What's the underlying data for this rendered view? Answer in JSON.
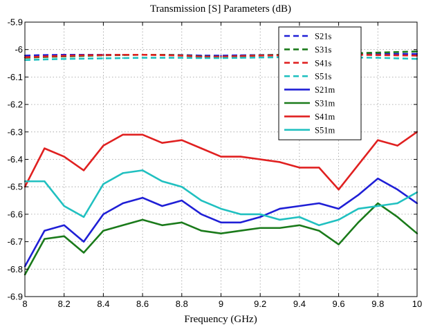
{
  "chart_data": {
    "type": "line",
    "title": "Transmission [S] Parameters (dB)",
    "xlabel": "Frequency (GHz)",
    "ylabel": "",
    "xlim": [
      8,
      10
    ],
    "ylim": [
      -6.9,
      -5.9
    ],
    "xticks": [
      "8",
      "8.2",
      "8.4",
      "8.6",
      "8.8",
      "9",
      "9.2",
      "9.4",
      "9.6",
      "9.8",
      "10"
    ],
    "yticks": [
      "-5.9",
      "-6",
      "-6.1",
      "-6.2",
      "-6.3",
      "-6.4",
      "-6.5",
      "-6.6",
      "-6.7",
      "-6.8",
      "-6.9"
    ],
    "grid": true,
    "legend_position": "top-right",
    "x": [
      8.0,
      8.1,
      8.2,
      8.3,
      8.4,
      8.5,
      8.6,
      8.7,
      8.8,
      8.9,
      9.0,
      9.1,
      9.2,
      9.3,
      9.4,
      9.5,
      9.6,
      9.7,
      9.8,
      9.9,
      10.0
    ],
    "series": [
      {
        "name": "S21s",
        "style": "dashed",
        "color": "#1f1fd6",
        "values": [
          -6.022,
          -6.02,
          -6.019,
          -6.019,
          -6.019,
          -6.019,
          -6.019,
          -6.019,
          -6.02,
          -6.022,
          -6.022,
          -6.021,
          -6.02,
          -6.019,
          -6.018,
          -6.018,
          -6.017,
          -6.017,
          -6.016,
          -6.016,
          -6.016
        ]
      },
      {
        "name": "S31s",
        "style": "dashed",
        "color": "#1a7a1a",
        "values": [
          -6.03,
          -6.027,
          -6.025,
          -6.023,
          -6.021,
          -6.02,
          -6.019,
          -6.019,
          -6.021,
          -6.025,
          -6.026,
          -6.024,
          -6.021,
          -6.019,
          -6.017,
          -6.016,
          -6.015,
          -6.013,
          -6.011,
          -6.009,
          -6.007
        ]
      },
      {
        "name": "S41s",
        "style": "dashed",
        "color": "#e02020",
        "values": [
          -6.028,
          -6.025,
          -6.023,
          -6.021,
          -6.02,
          -6.019,
          -6.019,
          -6.02,
          -6.022,
          -6.026,
          -6.026,
          -6.024,
          -6.022,
          -6.021,
          -6.02,
          -6.019,
          -6.019,
          -6.019,
          -6.02,
          -6.021,
          -6.022
        ]
      },
      {
        "name": "S51s",
        "style": "dashed",
        "color": "#20c0c0",
        "values": [
          -6.038,
          -6.036,
          -6.034,
          -6.033,
          -6.032,
          -6.031,
          -6.03,
          -6.03,
          -6.03,
          -6.031,
          -6.031,
          -6.03,
          -6.029,
          -6.028,
          -6.028,
          -6.028,
          -6.028,
          -6.029,
          -6.03,
          -6.032,
          -6.034
        ]
      },
      {
        "name": "S21m",
        "style": "solid",
        "color": "#1f1fd6",
        "values": [
          -6.79,
          -6.66,
          -6.64,
          -6.7,
          -6.6,
          -6.56,
          -6.54,
          -6.57,
          -6.55,
          -6.6,
          -6.63,
          -6.63,
          -6.61,
          -6.58,
          -6.57,
          -6.56,
          -6.58,
          -6.53,
          -6.47,
          -6.51,
          -6.56
        ]
      },
      {
        "name": "S31m",
        "style": "solid",
        "color": "#1a7a1a",
        "values": [
          -6.82,
          -6.69,
          -6.68,
          -6.74,
          -6.66,
          -6.64,
          -6.62,
          -6.64,
          -6.63,
          -6.66,
          -6.67,
          -6.66,
          -6.65,
          -6.65,
          -6.64,
          -6.66,
          -6.71,
          -6.63,
          -6.56,
          -6.61,
          -6.67
        ]
      },
      {
        "name": "S41m",
        "style": "solid",
        "color": "#e02020",
        "values": [
          -6.5,
          -6.36,
          -6.39,
          -6.44,
          -6.35,
          -6.31,
          -6.31,
          -6.34,
          -6.33,
          -6.36,
          -6.39,
          -6.39,
          -6.4,
          -6.41,
          -6.43,
          -6.43,
          -6.51,
          -6.42,
          -6.33,
          -6.35,
          -6.3
        ]
      },
      {
        "name": "S51m",
        "style": "solid",
        "color": "#20c0c0",
        "values": [
          -6.48,
          -6.48,
          -6.57,
          -6.61,
          -6.49,
          -6.45,
          -6.44,
          -6.48,
          -6.5,
          -6.55,
          -6.58,
          -6.6,
          -6.6,
          -6.62,
          -6.61,
          -6.64,
          -6.62,
          -6.58,
          -6.57,
          -6.56,
          -6.52
        ]
      }
    ]
  }
}
